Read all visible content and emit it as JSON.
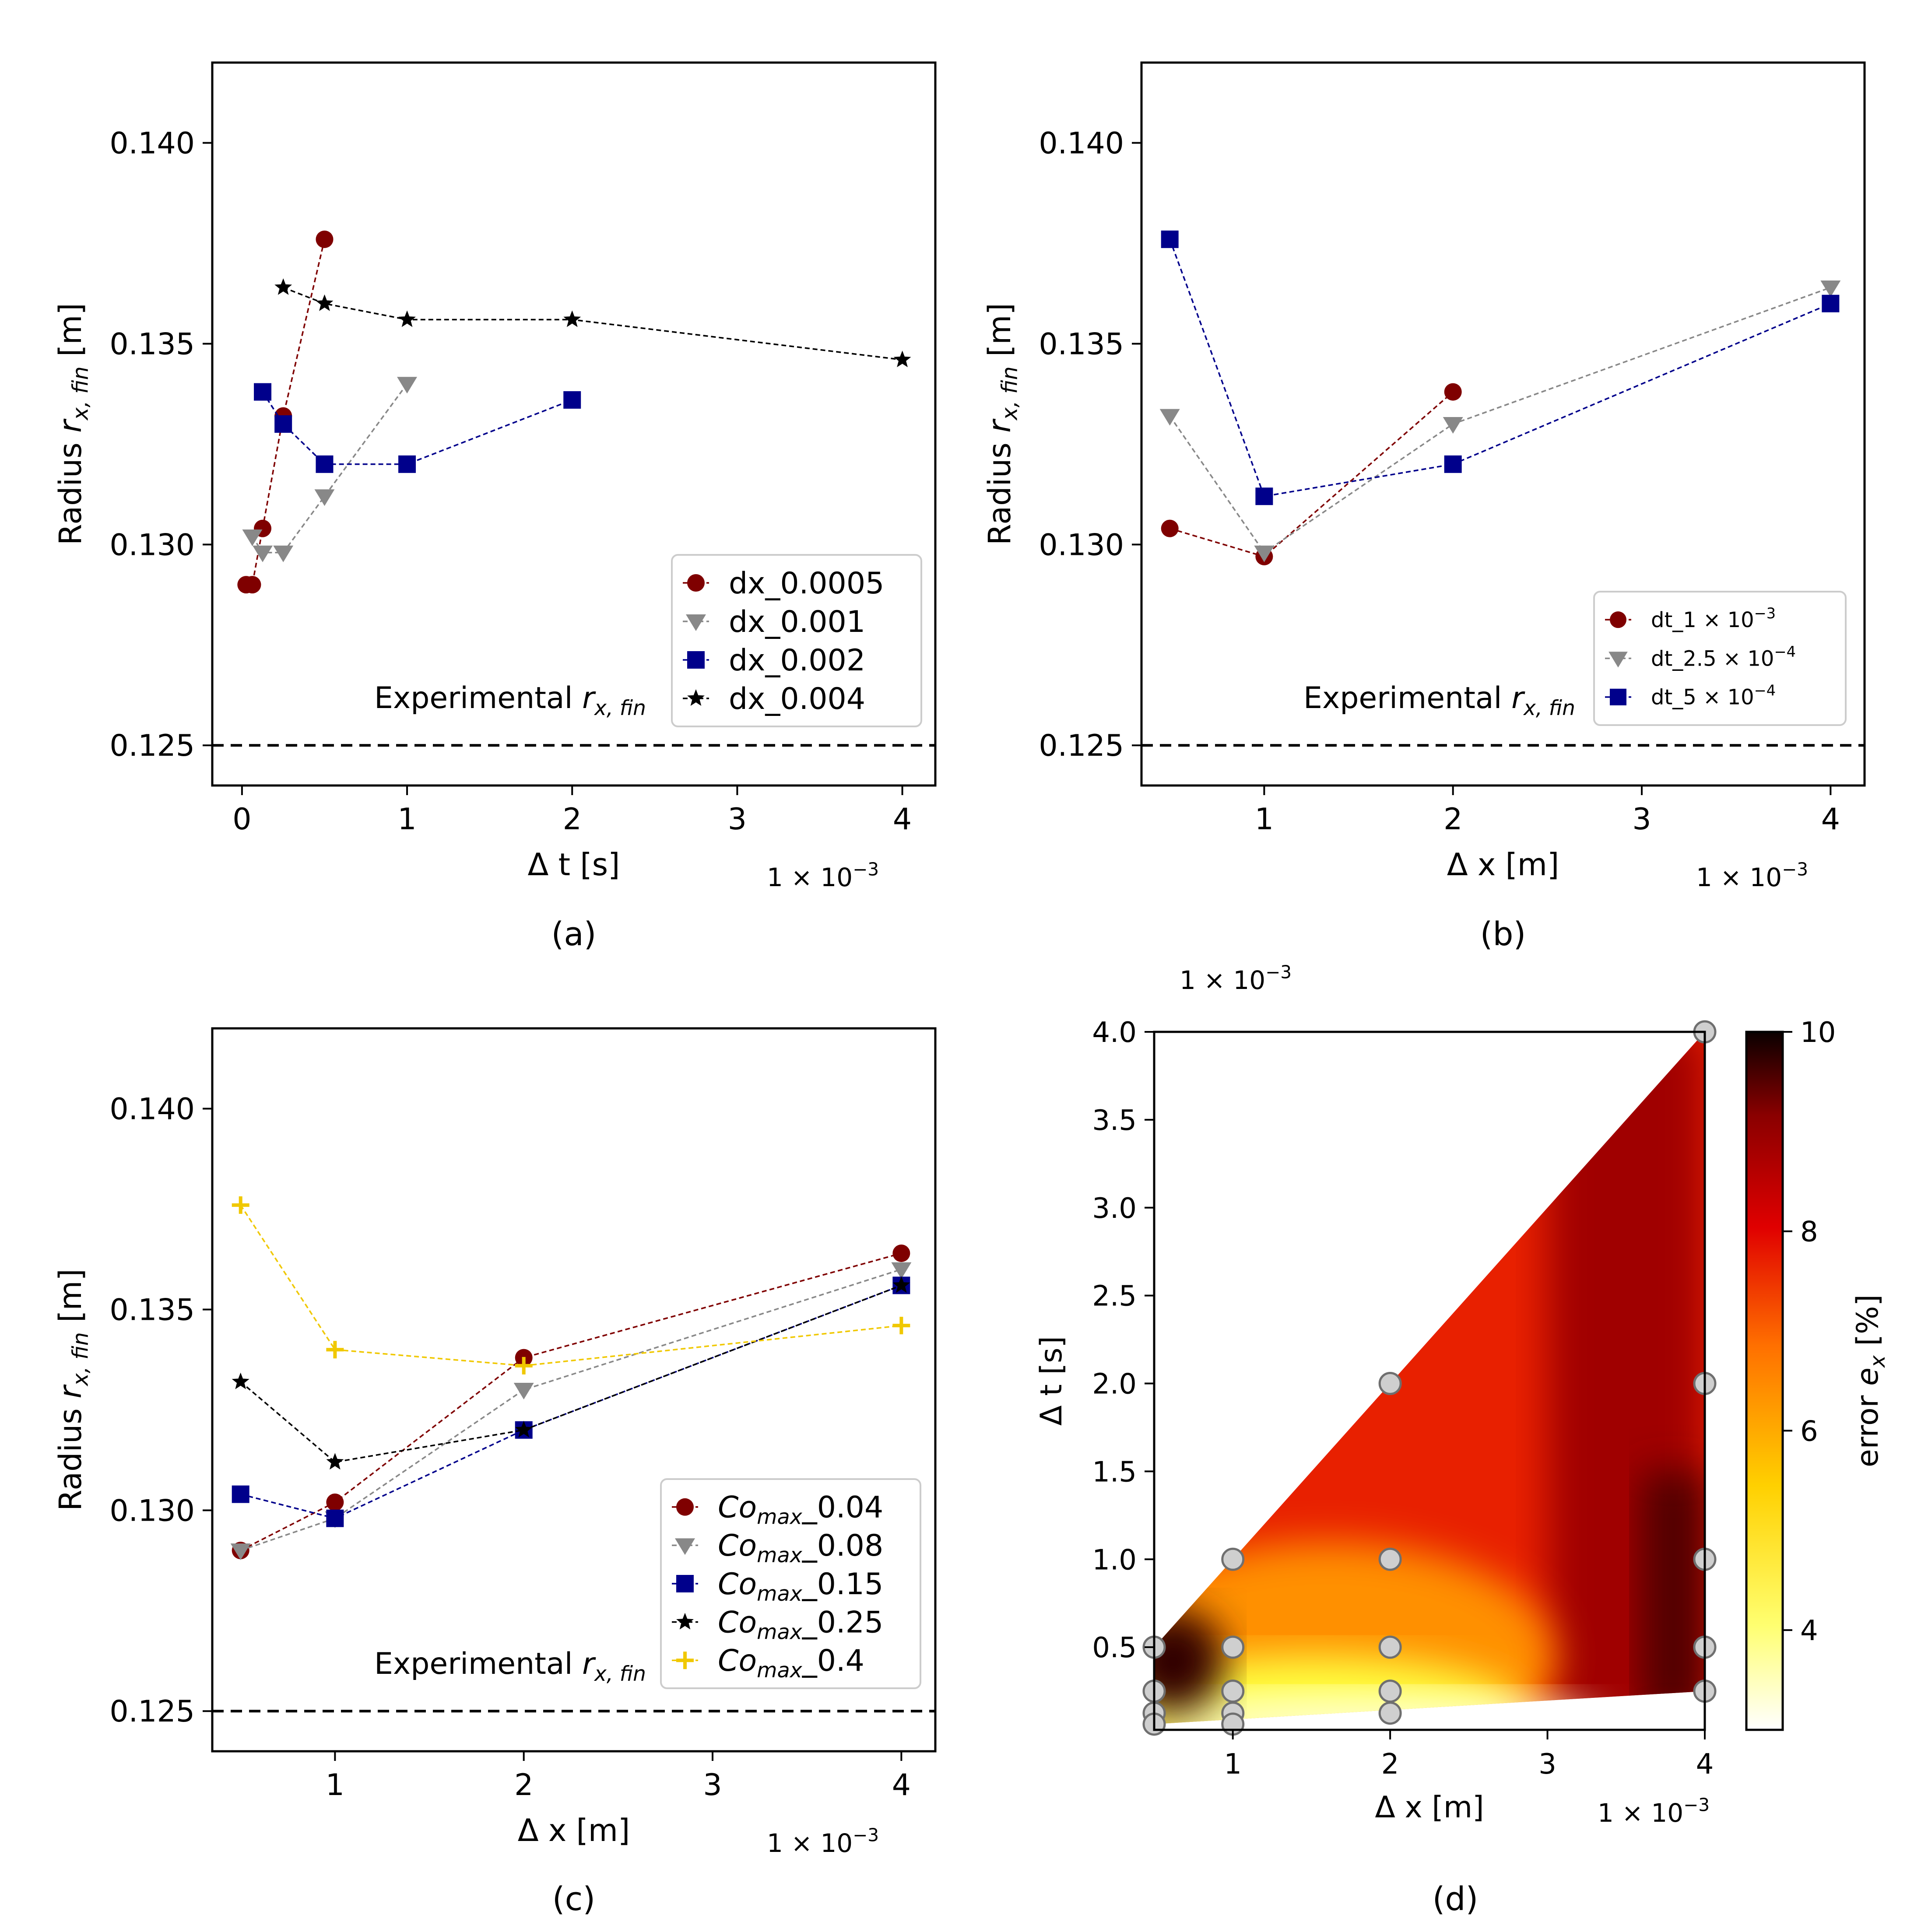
{
  "figure": {
    "panel_labels": [
      "(a)",
      "(b)",
      "(c)",
      "(d)"
    ]
  },
  "chart_data": [
    {
      "panel": "(a)",
      "type": "line",
      "markers": true,
      "xlabel": "Δ t [s]",
      "ylabel": "Radius r_x,fin [m]",
      "x_multiplier": "1 × 10^-3",
      "xlim": [
        -0.18,
        4.2
      ],
      "ylim": [
        0.124,
        0.142
      ],
      "xticks": [
        0,
        1,
        2,
        3,
        4
      ],
      "yticks": [
        0.125,
        0.13,
        0.135,
        0.14
      ],
      "ytick_labels": [
        "0.125",
        "0.130",
        "0.135",
        "0.140"
      ],
      "reference_line": {
        "y": 0.125,
        "label": "Experimental",
        "label_symbol": "r",
        "label_sub": "x, fin",
        "style": "dashed"
      },
      "legend": {
        "position": "bottom-right"
      },
      "series": [
        {
          "name": "dx_0.0005",
          "marker": "circle",
          "color": "#7f0000",
          "x": [
            0.025,
            0.0625,
            0.125,
            0.25,
            0.5
          ],
          "y": [
            0.129,
            0.129,
            0.1304,
            0.1332,
            0.1376
          ]
        },
        {
          "name": "dx_0.001",
          "marker": "triangle-down",
          "color": "#888888",
          "x": [
            0.0625,
            0.125,
            0.25,
            0.5,
            1.0
          ],
          "y": [
            0.1302,
            0.1298,
            0.1298,
            0.1312,
            0.134
          ]
        },
        {
          "name": "dx_0.002",
          "marker": "square",
          "color": "#00008b",
          "x": [
            0.125,
            0.25,
            0.5,
            1.0,
            2.0
          ],
          "y": [
            0.1338,
            0.133,
            0.132,
            0.132,
            0.1336
          ]
        },
        {
          "name": "dx_0.004",
          "marker": "star",
          "color": "#000000",
          "x": [
            0.25,
            0.5,
            1.0,
            2.0,
            4.0
          ],
          "y": [
            0.1364,
            0.136,
            0.1356,
            0.1356,
            0.1346
          ]
        }
      ]
    },
    {
      "panel": "(b)",
      "type": "line",
      "markers": true,
      "xlabel": "Δ x [m]",
      "ylabel": "Radius r_x,fin [m]",
      "x_multiplier": "1 × 10^-3",
      "xlim": [
        0.35,
        4.18
      ],
      "ylim": [
        0.124,
        0.142
      ],
      "xticks": [
        1,
        2,
        3,
        4
      ],
      "yticks": [
        0.125,
        0.13,
        0.135,
        0.14
      ],
      "ytick_labels": [
        "0.125",
        "0.130",
        "0.135",
        "0.140"
      ],
      "reference_line": {
        "y": 0.125,
        "label": "Experimental",
        "label_symbol": "r",
        "label_sub": "x, fin",
        "style": "dashed"
      },
      "legend": {
        "position": "bottom-right"
      },
      "series": [
        {
          "name": "dt_1 × 10^-3",
          "name_base": "dt_1 × 10",
          "name_exp": "−3",
          "marker": "circle",
          "color": "#7f0000",
          "x": [
            0.5,
            1.0,
            2.0
          ],
          "y": [
            0.1304,
            0.1297,
            0.1338
          ]
        },
        {
          "name": "dt_2.5 × 10^-4",
          "name_base": "dt_2.5 × 10",
          "name_exp": "−4",
          "marker": "triangle-down",
          "color": "#888888",
          "x": [
            0.5,
            1.0,
            2.0,
            4.0
          ],
          "y": [
            0.1332,
            0.1298,
            0.133,
            0.1364
          ]
        },
        {
          "name": "dt_5 × 10^-4",
          "name_base": "dt_5 × 10",
          "name_exp": "−4",
          "marker": "square",
          "color": "#00008b",
          "x": [
            0.5,
            1.0,
            2.0,
            4.0
          ],
          "y": [
            0.1376,
            0.1312,
            0.132,
            0.136
          ]
        }
      ]
    },
    {
      "panel": "(c)",
      "type": "line",
      "markers": true,
      "xlabel": "Δ x [m]",
      "ylabel": "Radius r_x,fin [m]",
      "x_multiplier": "1 × 10^-3",
      "xlim": [
        0.35,
        4.18
      ],
      "ylim": [
        0.124,
        0.142
      ],
      "xticks": [
        1,
        2,
        3,
        4
      ],
      "yticks": [
        0.125,
        0.13,
        0.135,
        0.14
      ],
      "ytick_labels": [
        "0.125",
        "0.130",
        "0.135",
        "0.140"
      ],
      "reference_line": {
        "y": 0.125,
        "label": "Experimental",
        "label_symbol": "r",
        "label_sub": "x, fin",
        "style": "dashed"
      },
      "legend": {
        "position": "bottom-right"
      },
      "series": [
        {
          "name": "Co_max_0.04",
          "name_tail": "_0.04",
          "marker": "circle",
          "color": "#7f0000",
          "x": [
            0.5,
            1.0,
            2.0,
            4.0
          ],
          "y": [
            0.129,
            0.1302,
            0.1338,
            0.1364
          ]
        },
        {
          "name": "Co_max_0.08",
          "name_tail": "_0.08",
          "marker": "triangle-down",
          "color": "#888888",
          "x": [
            0.5,
            1.0,
            2.0,
            4.0
          ],
          "y": [
            0.129,
            0.1298,
            0.133,
            0.136
          ]
        },
        {
          "name": "Co_max_0.15",
          "name_tail": "_0.15",
          "marker": "square",
          "color": "#00008b",
          "x": [
            0.5,
            1.0,
            2.0,
            4.0
          ],
          "y": [
            0.1304,
            0.1298,
            0.132,
            0.1356
          ]
        },
        {
          "name": "Co_max_0.25",
          "name_tail": "_0.25",
          "marker": "star",
          "color": "#000000",
          "x": [
            0.5,
            1.0,
            2.0,
            4.0
          ],
          "y": [
            0.1332,
            0.1312,
            0.132,
            0.1356
          ]
        },
        {
          "name": "Co_max_0.4",
          "name_tail": "_0.4",
          "marker": "plus",
          "color": "#f0c800",
          "x": [
            0.5,
            1.0,
            2.0,
            4.0
          ],
          "y": [
            0.1376,
            0.134,
            0.1336,
            0.1346
          ]
        }
      ]
    },
    {
      "panel": "(d)",
      "type": "heatmap",
      "xlabel": "Δ x [m]",
      "ylabel": "Δ t [s]",
      "x_multiplier": "1 × 10^-3",
      "y_multiplier": "1 × 10^-3",
      "xlim": [
        0.5,
        4.0
      ],
      "ylim": [
        0.03,
        4.0
      ],
      "xticks": [
        1,
        2,
        3,
        4
      ],
      "yticks": [
        0.5,
        1.0,
        1.5,
        2.0,
        2.5,
        3.0,
        3.5,
        4.0
      ],
      "ytick_labels": [
        "0.5",
        "1.0",
        "1.5",
        "2.0",
        "2.5",
        "3.0",
        "3.5",
        "4.0"
      ],
      "colorbar": {
        "label": "error",
        "label_symbol": "e",
        "label_sub": "x",
        "label_unit": "[%]",
        "range": [
          3,
          10
        ],
        "ticks": [
          4,
          6,
          8,
          10
        ],
        "colormap": "hot_r"
      },
      "sample_points": [
        [
          0.5,
          0.5
        ],
        [
          0.5,
          0.25
        ],
        [
          0.5,
          0.125
        ],
        [
          0.5,
          0.0625
        ],
        [
          1.0,
          1.0
        ],
        [
          1.0,
          0.5
        ],
        [
          1.0,
          0.25
        ],
        [
          1.0,
          0.125
        ],
        [
          1.0,
          0.0625
        ],
        [
          2.0,
          2.0
        ],
        [
          2.0,
          1.0
        ],
        [
          2.0,
          0.5
        ],
        [
          2.0,
          0.25
        ],
        [
          2.0,
          0.125
        ],
        [
          4.0,
          4.0
        ],
        [
          4.0,
          2.0
        ],
        [
          4.0,
          1.0
        ],
        [
          4.0,
          0.5
        ],
        [
          4.0,
          0.25
        ]
      ]
    }
  ]
}
